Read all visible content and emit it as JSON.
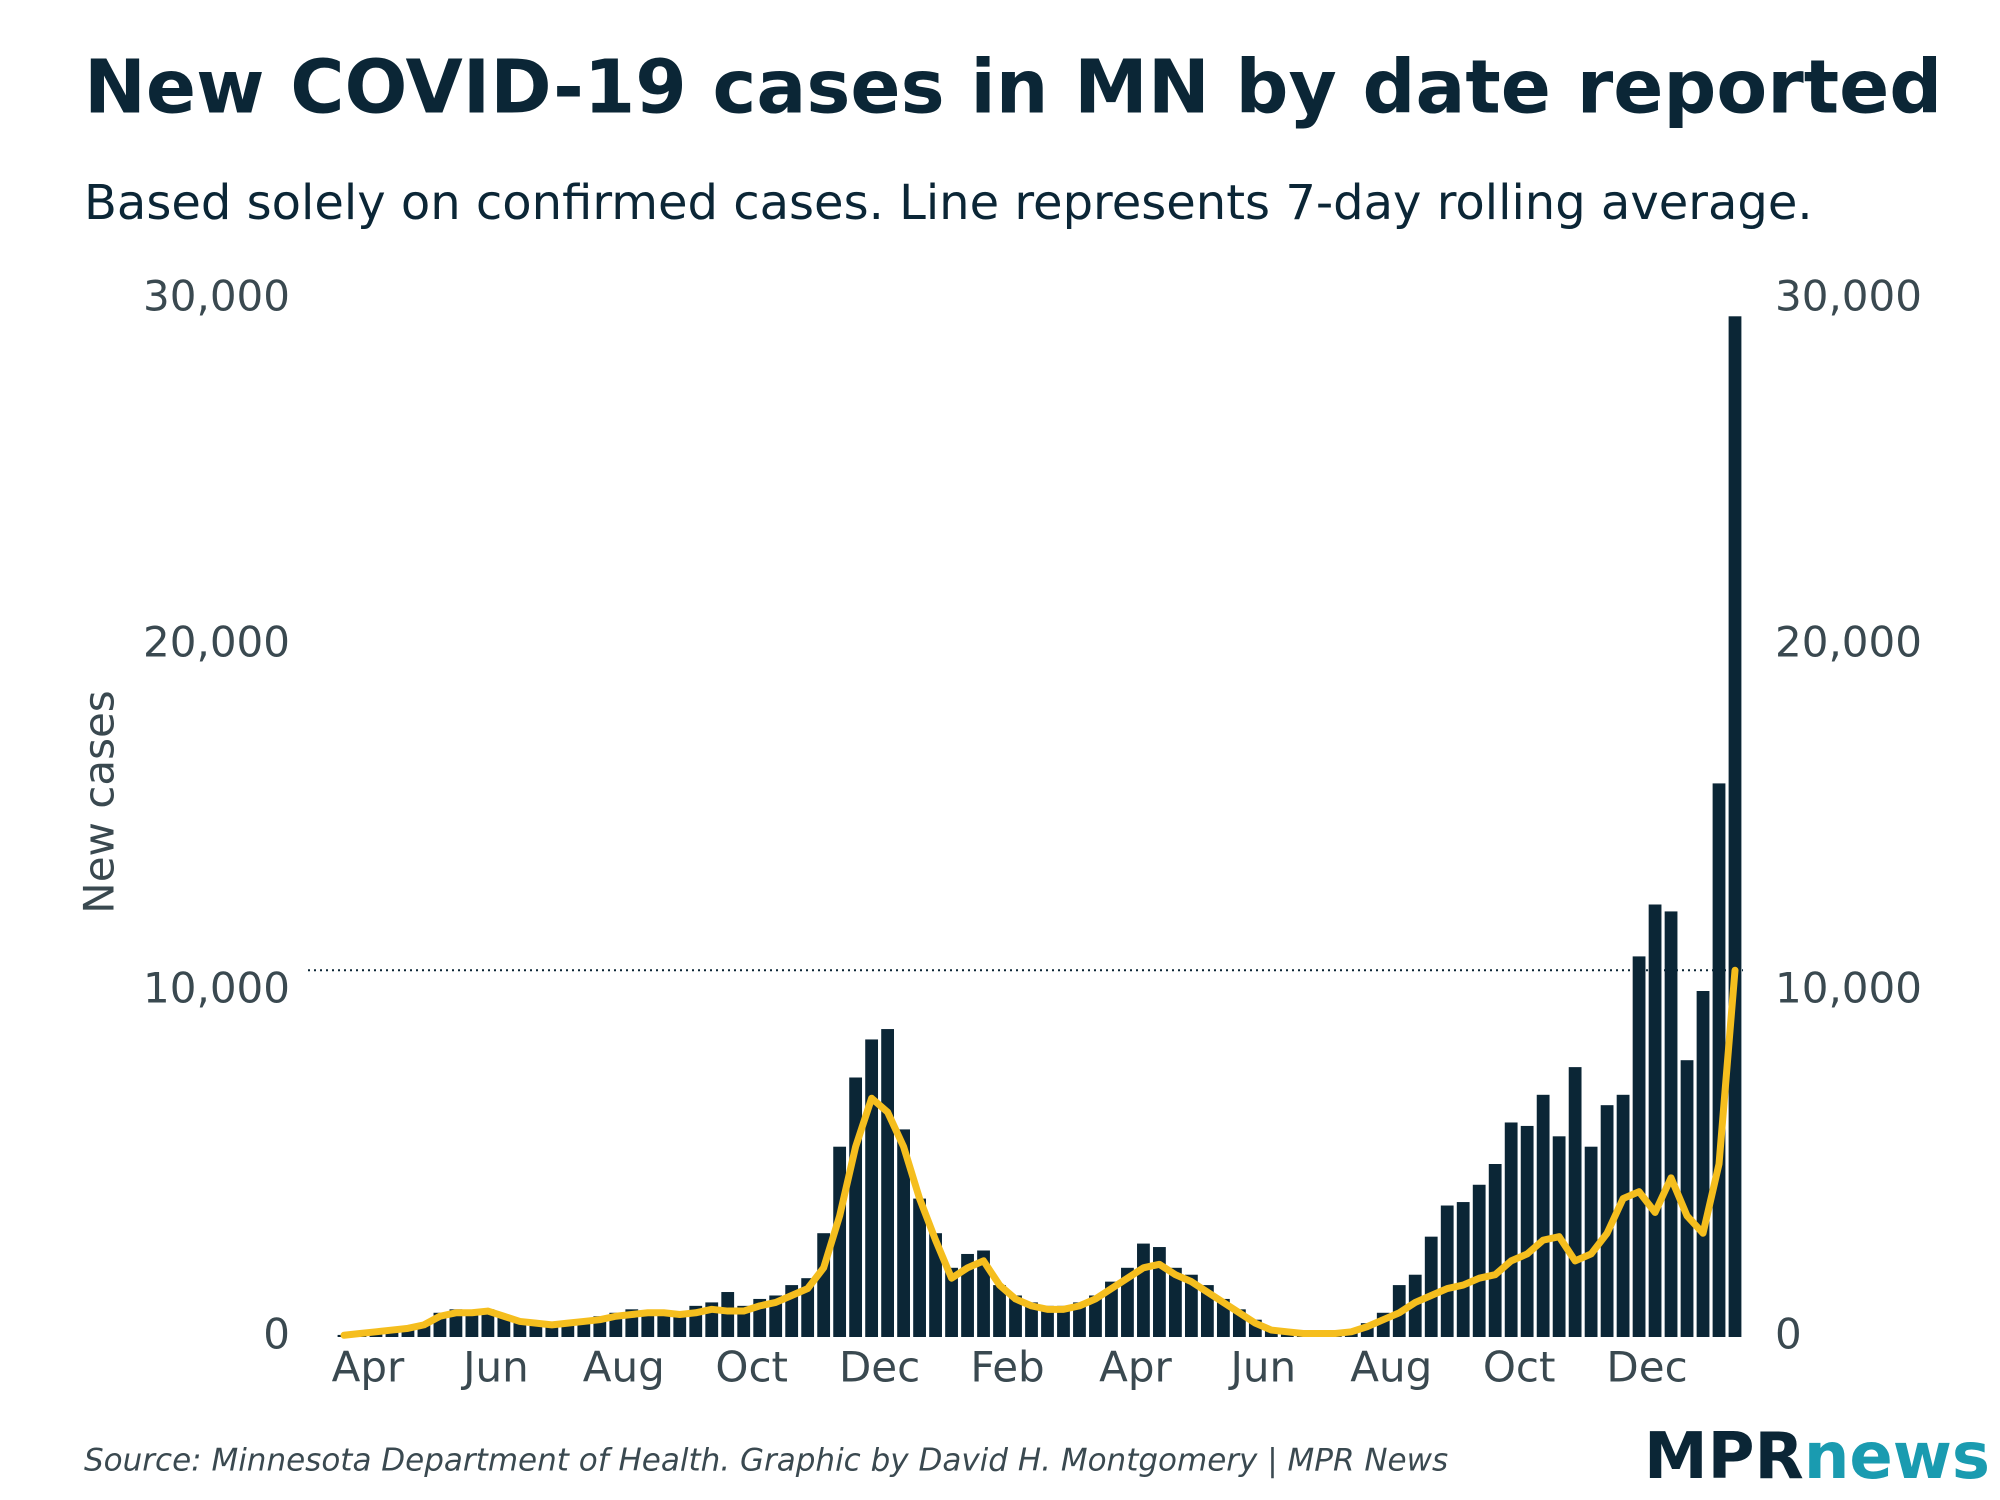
{
  "chart_data": {
    "type": "bar",
    "title": "New COVID-19 cases in MN by date reported",
    "subtitle": "Based solely on confirmed cases. Line represents 7-day rolling average.",
    "y_label": "New cases",
    "source": "Source: Minnesota Department of Health. Graphic by David H. Montgomery | MPR News",
    "logo": [
      "MPR",
      "news"
    ],
    "categories": [
      null,
      null,
      "Apr",
      null,
      null,
      null,
      null,
      null,
      null,
      null,
      "Jun",
      null,
      null,
      null,
      null,
      null,
      null,
      null,
      "Aug",
      null,
      null,
      null,
      null,
      null,
      null,
      null,
      "Oct",
      null,
      null,
      null,
      null,
      null,
      null,
      null,
      "Dec",
      null,
      null,
      null,
      null,
      null,
      null,
      null,
      "Feb",
      null,
      null,
      null,
      null,
      null,
      null,
      null,
      "Apr",
      null,
      null,
      null,
      null,
      null,
      null,
      null,
      "Jun",
      null,
      null,
      null,
      null,
      null,
      null,
      null,
      "Aug",
      null,
      null,
      null,
      null,
      null,
      null,
      null,
      "Oct",
      null,
      null,
      null,
      null,
      null,
      null,
      null,
      "Dec",
      null,
      null,
      null,
      null,
      null
    ],
    "series": [
      {
        "type": "bar",
        "color": "#0b2636",
        "values": [
          60,
          120,
          150,
          200,
          300,
          400,
          700,
          800,
          750,
          800,
          600,
          450,
          400,
          400,
          450,
          500,
          600,
          700,
          800,
          750,
          700,
          700,
          900,
          1000,
          1300,
          900,
          1100,
          1200,
          1500,
          1700,
          3000,
          5500,
          7500,
          8600,
          8900,
          6000,
          4000,
          3000,
          2000,
          2400,
          2500,
          1500,
          1200,
          1000,
          900,
          900,
          1000,
          1200,
          1600,
          2000,
          2700,
          2600,
          2000,
          1800,
          1500,
          1100,
          800,
          500,
          250,
          200,
          150,
          120,
          150,
          200,
          400,
          700,
          1500,
          1800,
          2900,
          3800,
          3900,
          4400,
          5000,
          6200,
          6100,
          7000,
          5800,
          7800,
          5500,
          6700,
          7000,
          11000,
          12500,
          12300,
          8000,
          10000,
          16000,
          29500
        ]
      },
      {
        "type": "line",
        "color": "#f5be1e",
        "values": [
          50,
          100,
          150,
          200,
          250,
          350,
          600,
          700,
          700,
          750,
          600,
          450,
          400,
          350,
          400,
          450,
          500,
          600,
          650,
          700,
          700,
          650,
          700,
          800,
          750,
          750,
          900,
          1000,
          1200,
          1400,
          2000,
          3500,
          5500,
          6900,
          6500,
          5500,
          4000,
          2800,
          1700,
          2000,
          2200,
          1500,
          1100,
          900,
          800,
          800,
          900,
          1100,
          1400,
          1700,
          2000,
          2100,
          1800,
          1600,
          1300,
          1000,
          700,
          400,
          200,
          150,
          100,
          100,
          100,
          150,
          300,
          500,
          700,
          1000,
          1200,
          1400,
          1500,
          1700,
          1800,
          2200,
          2400,
          2800,
          2900,
          2200,
          2400,
          3000,
          4000,
          4200,
          3600,
          4600,
          3500,
          3000,
          5000,
          10600
        ]
      }
    ],
    "reference": 10600,
    "ylim": [
      0,
      30000
    ],
    "yticks": [
      0,
      {
        "value": 10000,
        "label": "10,000"
      },
      {
        "value": 20000,
        "label": "20,000"
      },
      {
        "value": 30000,
        "label": "30,000"
      }
    ]
  }
}
